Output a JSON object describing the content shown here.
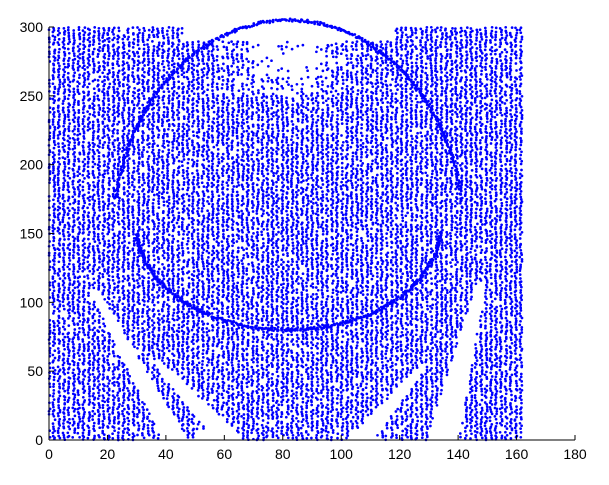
{
  "chart_data": {
    "type": "scatter",
    "title": "",
    "xlabel": "",
    "ylabel": "",
    "xlim": [
      0,
      180
    ],
    "ylim": [
      0,
      300
    ],
    "x_ticks": [
      0,
      20,
      40,
      60,
      80,
      100,
      120,
      140,
      160,
      180
    ],
    "y_ticks": [
      0,
      50,
      100,
      150,
      200,
      250,
      300
    ],
    "grid": false,
    "legend": "none",
    "marker_color": "#0000ff",
    "series": [
      {
        "description_of_extent": "dense dotted point cloud on a regular-ish grid",
        "x_range": [
          0,
          163
        ],
        "y_range": [
          0,
          300
        ]
      }
    ]
  }
}
